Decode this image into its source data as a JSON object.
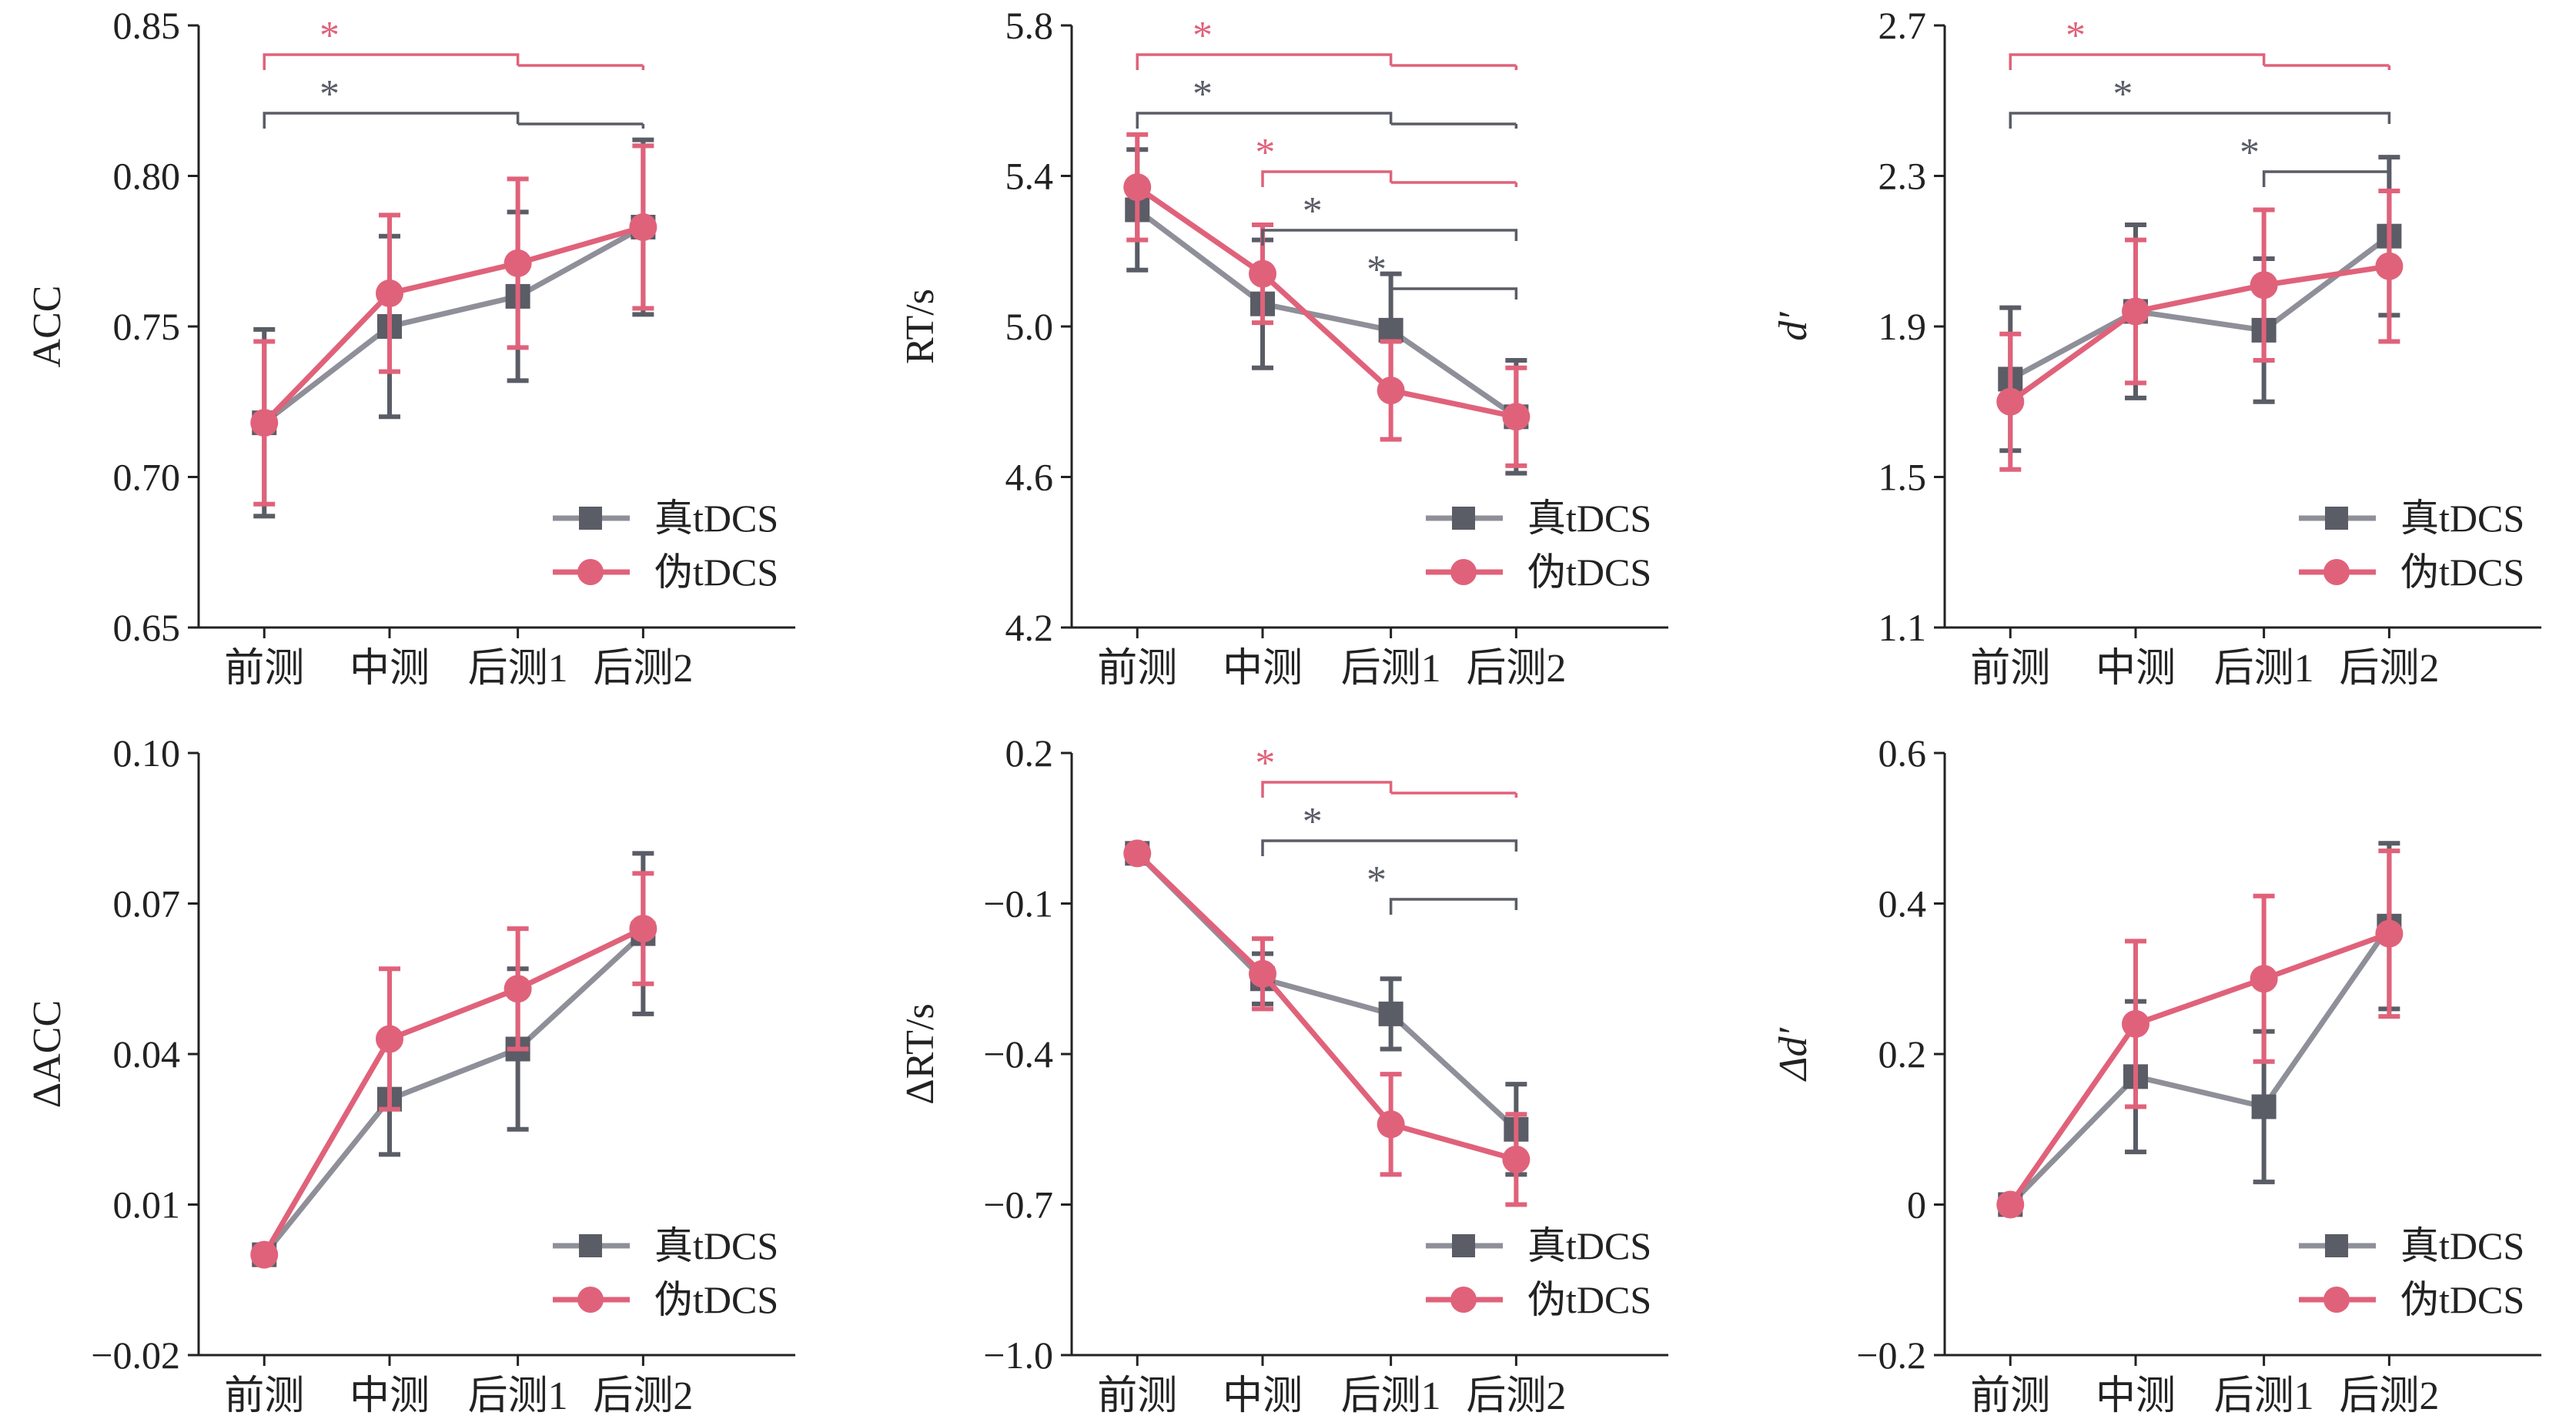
{
  "colors": {
    "real": "#5a5c66",
    "sham": "#e0627a",
    "axis": "#222222"
  },
  "legend": {
    "real": "真tDCS",
    "sham": "伪tDCS"
  },
  "categories": [
    "前测",
    "中测",
    "后测1",
    "后测2"
  ],
  "chart_data": [
    {
      "type": "line",
      "ylabel": "ACC",
      "ylabel_italic": false,
      "yticks": [
        "0.85",
        "0.80",
        "0.75",
        "0.70",
        "0.65"
      ],
      "ylim": [
        0.65,
        0.85
      ],
      "series": [
        {
          "name": "真tDCS",
          "values": [
            0.718,
            0.75,
            0.76,
            0.783
          ],
          "err": [
            0.031,
            0.03,
            0.028,
            0.029
          ]
        },
        {
          "name": "伪tDCS",
          "values": [
            0.718,
            0.761,
            0.771,
            0.783
          ],
          "err": [
            0.027,
            0.026,
            0.028,
            0.027
          ]
        }
      ],
      "significance": [
        {
          "series": "伪tDCS",
          "from": 0,
          "to": [
            2,
            3
          ],
          "label": "*"
        },
        {
          "series": "真tDCS",
          "from": 0,
          "to": [
            2,
            3
          ],
          "label": "*"
        }
      ]
    },
    {
      "type": "line",
      "ylabel": "RT/s",
      "ylabel_italic": false,
      "yticks": [
        "5.8",
        "5.4",
        "5.0",
        "4.6",
        "4.2"
      ],
      "ylim": [
        4.2,
        5.8
      ],
      "series": [
        {
          "name": "真tDCS",
          "values": [
            5.31,
            5.06,
            4.99,
            4.76
          ],
          "err": [
            0.16,
            0.17,
            0.15,
            0.15
          ]
        },
        {
          "name": "伪tDCS",
          "values": [
            5.37,
            5.14,
            4.83,
            4.76
          ],
          "err": [
            0.14,
            0.13,
            0.13,
            0.13
          ]
        }
      ],
      "significance": [
        {
          "series": "伪tDCS",
          "from": 0,
          "to": [
            2,
            3
          ],
          "label": "*"
        },
        {
          "series": "真tDCS",
          "from": 0,
          "to": [
            2,
            3
          ],
          "label": "*"
        },
        {
          "series": "伪tDCS",
          "from": 1,
          "to": [
            2,
            3
          ],
          "label": "*"
        },
        {
          "series": "真tDCS",
          "from": 1,
          "to": [
            3
          ],
          "label": "*"
        },
        {
          "series": "真tDCS",
          "from": 2,
          "to": [
            3
          ],
          "label": "*"
        }
      ]
    },
    {
      "type": "line",
      "ylabel": "d′",
      "ylabel_italic": true,
      "yticks": [
        "2.7",
        "2.3",
        "1.9",
        "1.5",
        "1.1"
      ],
      "ylim": [
        1.1,
        2.7
      ],
      "series": [
        {
          "name": "真tDCS",
          "values": [
            1.76,
            1.94,
            1.89,
            2.14
          ],
          "err": [
            0.19,
            0.23,
            0.19,
            0.21
          ]
        },
        {
          "name": "伪tDCS",
          "values": [
            1.7,
            1.94,
            2.01,
            2.06
          ],
          "err": [
            0.18,
            0.19,
            0.2,
            0.2
          ]
        }
      ],
      "significance": [
        {
          "series": "伪tDCS",
          "from": 0,
          "to": [
            2,
            3
          ],
          "label": "*"
        },
        {
          "series": "真tDCS",
          "from": 0,
          "to": [
            3
          ],
          "label": "*"
        },
        {
          "series": "真tDCS",
          "from": 2,
          "to": [
            3
          ],
          "label": "*"
        }
      ]
    },
    {
      "type": "line",
      "ylabel": "ΔACC",
      "ylabel_italic": false,
      "yticks": [
        "0.10",
        "0.07",
        "0.04",
        "0.01",
        "−0.02"
      ],
      "ylim": [
        -0.02,
        0.1
      ],
      "series": [
        {
          "name": "真tDCS",
          "values": [
            0.0,
            0.031,
            0.041,
            0.064
          ],
          "err": [
            0.0,
            0.011,
            0.016,
            0.016
          ]
        },
        {
          "name": "伪tDCS",
          "values": [
            0.0,
            0.043,
            0.053,
            0.065
          ],
          "err": [
            0.0,
            0.014,
            0.012,
            0.011
          ]
        }
      ],
      "significance": []
    },
    {
      "type": "line",
      "ylabel": "ΔRT/s",
      "ylabel_italic": false,
      "yticks": [
        "0.2",
        "−0.1",
        "−0.4",
        "−0.7",
        "−1.0"
      ],
      "ylim": [
        -1.0,
        0.2
      ],
      "series": [
        {
          "name": "真tDCS",
          "values": [
            0.0,
            -0.25,
            -0.32,
            -0.55
          ],
          "err": [
            0.0,
            0.05,
            0.07,
            0.09
          ]
        },
        {
          "name": "伪tDCS",
          "values": [
            0.0,
            -0.24,
            -0.54,
            -0.61
          ],
          "err": [
            0.0,
            0.07,
            0.1,
            0.09
          ]
        }
      ],
      "significance": [
        {
          "series": "伪tDCS",
          "from": 1,
          "to": [
            2,
            3
          ],
          "label": "*"
        },
        {
          "series": "真tDCS",
          "from": 1,
          "to": [
            3
          ],
          "label": "*"
        },
        {
          "series": "真tDCS",
          "from": 2,
          "to": [
            3
          ],
          "label": "*"
        }
      ]
    },
    {
      "type": "line",
      "ylabel": "Δd′",
      "ylabel_italic": true,
      "yticks": [
        "0.6",
        "0.4",
        "0.2",
        "0",
        "−0.2"
      ],
      "ylim": [
        -0.2,
        0.6
      ],
      "series": [
        {
          "name": "真tDCS",
          "values": [
            0.0,
            0.17,
            0.13,
            0.37
          ],
          "err": [
            0.0,
            0.1,
            0.1,
            0.11
          ]
        },
        {
          "name": "伪tDCS",
          "values": [
            0.0,
            0.24,
            0.3,
            0.36
          ],
          "err": [
            0.0,
            0.11,
            0.11,
            0.11
          ]
        }
      ],
      "significance": []
    }
  ]
}
